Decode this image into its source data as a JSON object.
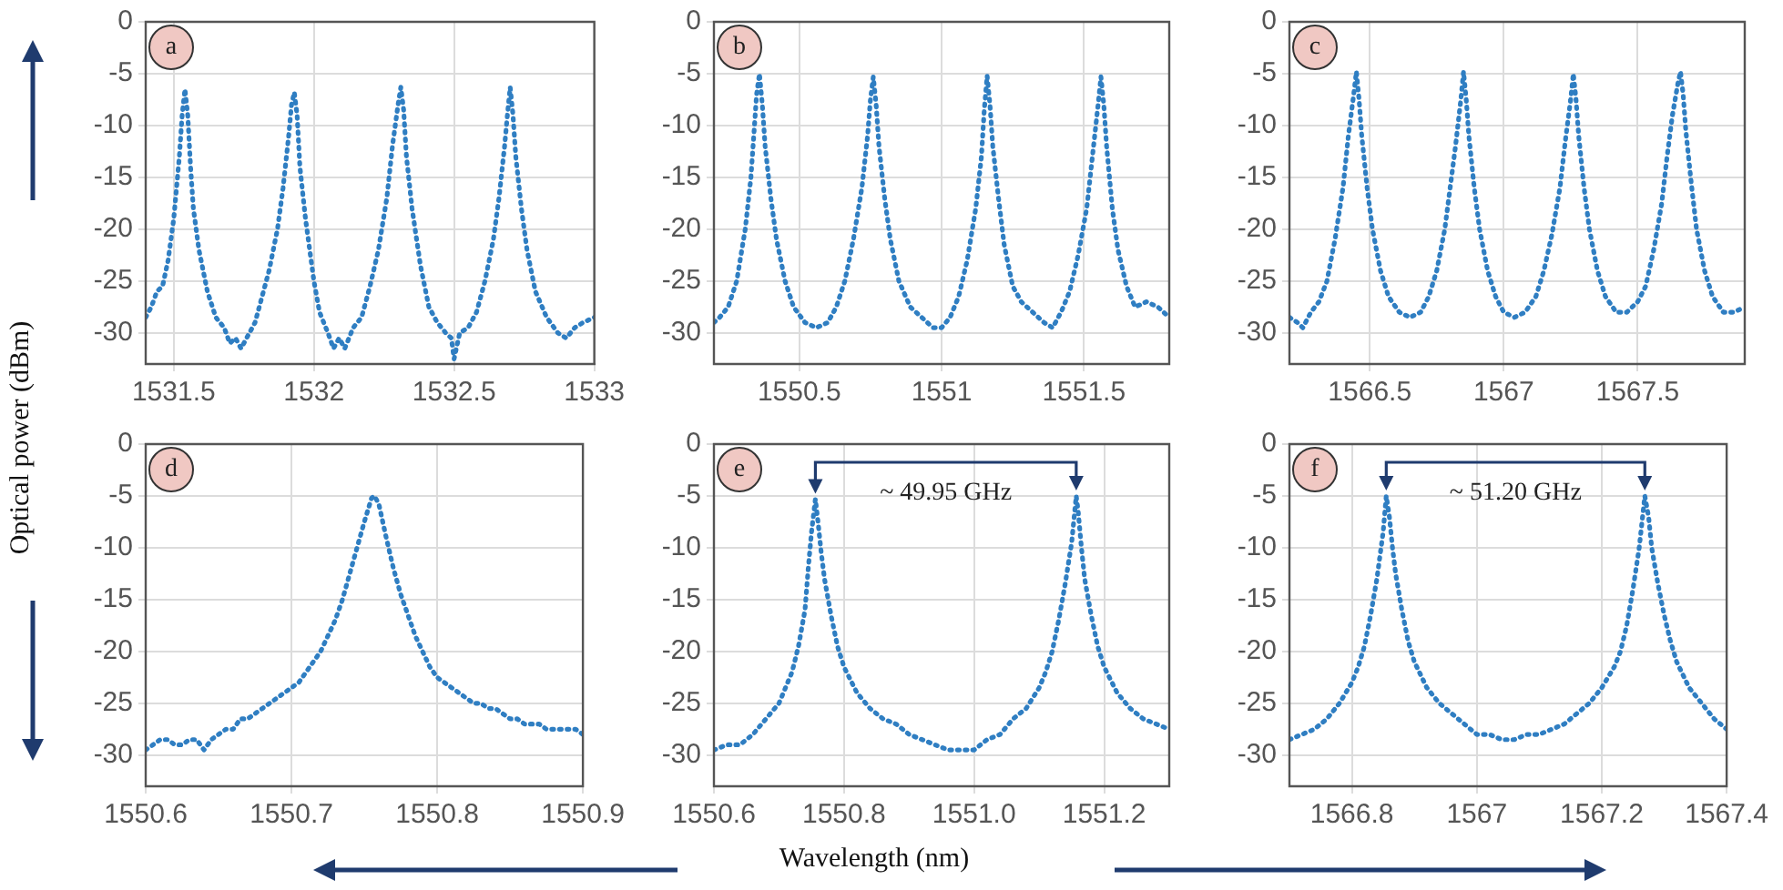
{
  "chart_data": [
    {
      "type": "line",
      "ylabel": "Optical power (dBm)",
      "annotations": [
        "a"
      ],
      "xlim": [
        1531.4,
        1533
      ],
      "xticks": [
        1531.5,
        1532,
        1532.5,
        1533
      ],
      "ylim": [
        -33,
        0
      ],
      "yticks": [
        0,
        -5,
        -10,
        -15,
        -20,
        -25,
        -30
      ],
      "grid": true,
      "legend": false,
      "marker": "none",
      "line_style": "dotted",
      "series": [
        {
          "color": "#2f7ec2",
          "x": [
            1531.4,
            1531.42,
            1531.44,
            1531.46,
            1531.48,
            1531.5,
            1531.51,
            1531.52,
            1531.53,
            1531.54,
            1531.55,
            1531.56,
            1531.57,
            1531.59,
            1531.62,
            1531.65,
            1531.68,
            1531.7,
            1531.72,
            1531.74,
            1531.76,
            1531.79,
            1531.81,
            1531.84,
            1531.87,
            1531.89,
            1531.91,
            1531.92,
            1531.93,
            1531.94,
            1531.95,
            1531.97,
            1532.0,
            1532.02,
            1532.05,
            1532.07,
            1532.09,
            1532.11,
            1532.14,
            1532.17,
            1532.2,
            1532.23,
            1532.26,
            1532.28,
            1532.3,
            1532.31,
            1532.32,
            1532.33,
            1532.35,
            1532.38,
            1532.41,
            1532.44,
            1532.47,
            1532.49,
            1532.5,
            1532.52,
            1532.55,
            1532.58,
            1532.61,
            1532.64,
            1532.66,
            1532.68,
            1532.69,
            1532.7,
            1532.71,
            1532.72,
            1532.74,
            1532.76,
            1532.79,
            1532.83,
            1532.87,
            1532.9,
            1532.93,
            1532.96,
            1533.0
          ],
          "values": [
            -28.5,
            -27.5,
            -26,
            -25.5,
            -23,
            -19,
            -16,
            -13,
            -9,
            -6.5,
            -9,
            -14,
            -18,
            -22,
            -26,
            -28.5,
            -29.5,
            -31,
            -30.5,
            -31.5,
            -30.5,
            -29,
            -27,
            -24,
            -20,
            -16,
            -11,
            -8,
            -6.8,
            -9,
            -14,
            -19,
            -25,
            -28,
            -30,
            -31.5,
            -30.5,
            -31.5,
            -29.5,
            -28.5,
            -25.5,
            -22,
            -17,
            -12,
            -8,
            -6.3,
            -8.5,
            -13,
            -18,
            -23.5,
            -27.5,
            -29,
            -30,
            -30.5,
            -32.5,
            -30,
            -29.5,
            -28,
            -25,
            -21,
            -17,
            -12,
            -9,
            -6.3,
            -9,
            -13,
            -18,
            -22,
            -26,
            -28.5,
            -30,
            -30.5,
            -29.5,
            -29,
            -28.5
          ]
        }
      ]
    },
    {
      "type": "line",
      "annotations": [
        "b"
      ],
      "xlim": [
        1550.2,
        1551.8
      ],
      "xticks": [
        1550.5,
        1551,
        1551.5
      ],
      "ylim": [
        -33,
        0
      ],
      "yticks": [
        0,
        -5,
        -10,
        -15,
        -20,
        -25,
        -30
      ],
      "grid": true,
      "legend": false,
      "marker": "none",
      "line_style": "dotted",
      "series": [
        {
          "color": "#2f7ec2",
          "x": [
            1550.2,
            1550.22,
            1550.25,
            1550.28,
            1550.31,
            1550.33,
            1550.34,
            1550.35,
            1550.36,
            1550.37,
            1550.38,
            1550.4,
            1550.42,
            1550.45,
            1550.48,
            1550.52,
            1550.56,
            1550.6,
            1550.63,
            1550.66,
            1550.69,
            1550.72,
            1550.74,
            1550.75,
            1550.76,
            1550.77,
            1550.78,
            1550.8,
            1550.82,
            1550.85,
            1550.89,
            1550.93,
            1550.97,
            1551.0,
            1551.03,
            1551.06,
            1551.09,
            1551.12,
            1551.14,
            1551.15,
            1551.16,
            1551.17,
            1551.18,
            1551.2,
            1551.22,
            1551.25,
            1551.28,
            1551.32,
            1551.36,
            1551.39,
            1551.42,
            1551.45,
            1551.48,
            1551.51,
            1551.53,
            1551.55,
            1551.56,
            1551.57,
            1551.58,
            1551.6,
            1551.62,
            1551.65,
            1551.68,
            1551.72,
            1551.76,
            1551.8
          ],
          "values": [
            -29,
            -28.5,
            -27.5,
            -25,
            -20,
            -15,
            -11,
            -7,
            -5,
            -8,
            -12,
            -17,
            -21,
            -25,
            -27.5,
            -29,
            -29.5,
            -29,
            -27.5,
            -25,
            -21,
            -16,
            -11,
            -7.5,
            -5.3,
            -8,
            -12,
            -17,
            -21,
            -25,
            -27.5,
            -28.5,
            -29.5,
            -29.5,
            -28.5,
            -26.5,
            -23,
            -18,
            -13,
            -8.5,
            -5.2,
            -8,
            -12,
            -17,
            -21.5,
            -25.5,
            -27,
            -28,
            -29,
            -29.5,
            -28,
            -26,
            -22.5,
            -18,
            -13,
            -8,
            -5.3,
            -8,
            -12,
            -18,
            -22,
            -25.5,
            -27.5,
            -27,
            -27.5,
            -28.5
          ]
        }
      ]
    },
    {
      "type": "line",
      "annotations": [
        "c"
      ],
      "xlim": [
        1566.2,
        1567.9
      ],
      "xticks": [
        1566.5,
        1567,
        1567.5
      ],
      "ylim": [
        -33,
        0
      ],
      "yticks": [
        0,
        -5,
        -10,
        -15,
        -20,
        -25,
        -30
      ],
      "grid": true,
      "legend": false,
      "marker": "none",
      "line_style": "dotted",
      "series": [
        {
          "color": "#2f7ec2",
          "x": [
            1566.2,
            1566.23,
            1566.25,
            1566.28,
            1566.31,
            1566.34,
            1566.37,
            1566.4,
            1566.42,
            1566.44,
            1566.45,
            1566.46,
            1566.47,
            1566.49,
            1566.51,
            1566.54,
            1566.57,
            1566.61,
            1566.65,
            1566.69,
            1566.72,
            1566.75,
            1566.78,
            1566.8,
            1566.82,
            1566.84,
            1566.85,
            1566.86,
            1566.87,
            1566.89,
            1566.91,
            1566.94,
            1566.97,
            1567.0,
            1567.04,
            1567.08,
            1567.12,
            1567.15,
            1567.18,
            1567.21,
            1567.23,
            1567.25,
            1567.26,
            1567.27,
            1567.28,
            1567.3,
            1567.32,
            1567.35,
            1567.38,
            1567.42,
            1567.46,
            1567.5,
            1567.53,
            1567.56,
            1567.59,
            1567.61,
            1567.63,
            1567.65,
            1567.66,
            1567.67,
            1567.68,
            1567.7,
            1567.72,
            1567.75,
            1567.78,
            1567.82,
            1567.86,
            1567.9
          ],
          "values": [
            -28.5,
            -29,
            -29.5,
            -28,
            -27,
            -25,
            -21,
            -16,
            -11,
            -7,
            -4.8,
            -7.5,
            -11,
            -16,
            -20,
            -24,
            -26.5,
            -28,
            -28.5,
            -28,
            -26.5,
            -24,
            -20,
            -16,
            -12,
            -7.5,
            -4.8,
            -7.5,
            -11,
            -16,
            -20,
            -24,
            -26.5,
            -28,
            -28.5,
            -28,
            -26.5,
            -24,
            -20.5,
            -16,
            -11.5,
            -7.5,
            -5,
            -7.5,
            -11,
            -16,
            -20,
            -24,
            -26.5,
            -28,
            -28,
            -27,
            -25.5,
            -22,
            -17.5,
            -13,
            -9,
            -6,
            -4.8,
            -7,
            -10.5,
            -15.5,
            -20,
            -24,
            -26.5,
            -28,
            -28,
            -27.5
          ]
        }
      ]
    },
    {
      "type": "line",
      "annotations": [
        "d"
      ],
      "xlim": [
        1550.6,
        1550.9
      ],
      "xticks": [
        1550.6,
        1550.7,
        1550.8,
        1550.9
      ],
      "ylim": [
        -33,
        0
      ],
      "yticks": [
        0,
        -5,
        -10,
        -15,
        -20,
        -25,
        -30
      ],
      "grid": true,
      "legend": false,
      "marker": "none",
      "line_style": "dotted",
      "series": [
        {
          "color": "#2f7ec2",
          "x": [
            1550.6,
            1550.605,
            1550.61,
            1550.615,
            1550.62,
            1550.625,
            1550.63,
            1550.635,
            1550.64,
            1550.645,
            1550.65,
            1550.655,
            1550.66,
            1550.665,
            1550.67,
            1550.675,
            1550.68,
            1550.685,
            1550.69,
            1550.695,
            1550.7,
            1550.705,
            1550.71,
            1550.715,
            1550.72,
            1550.725,
            1550.73,
            1550.735,
            1550.74,
            1550.745,
            1550.75,
            1550.755,
            1550.757,
            1550.76,
            1550.765,
            1550.77,
            1550.775,
            1550.78,
            1550.785,
            1550.79,
            1550.795,
            1550.8,
            1550.805,
            1550.81,
            1550.815,
            1550.82,
            1550.825,
            1550.83,
            1550.835,
            1550.84,
            1550.845,
            1550.85,
            1550.855,
            1550.86,
            1550.865,
            1550.87,
            1550.875,
            1550.88,
            1550.885,
            1550.89,
            1550.895,
            1550.9
          ],
          "values": [
            -29.5,
            -29,
            -28.5,
            -28.5,
            -29,
            -29,
            -28.5,
            -28.5,
            -29.5,
            -28.5,
            -28,
            -27.5,
            -27.5,
            -26.5,
            -26.5,
            -26,
            -25.5,
            -25,
            -24.5,
            -24,
            -23.5,
            -23,
            -22,
            -21,
            -20,
            -18.5,
            -17,
            -15,
            -12.5,
            -10,
            -7.5,
            -5.2,
            -5,
            -5.8,
            -9,
            -12,
            -14.5,
            -16.5,
            -18.5,
            -20,
            -21.5,
            -22.5,
            -23,
            -23.5,
            -24,
            -24.5,
            -25,
            -25,
            -25.5,
            -25.5,
            -26,
            -26.5,
            -26.5,
            -27,
            -27,
            -27,
            -27.5,
            -27.5,
            -27.5,
            -27.5,
            -27.5,
            -28
          ]
        }
      ]
    },
    {
      "type": "line",
      "xlabel": "Wavelength (nm)",
      "annotations": [
        "e",
        "~ 49.95 GHz"
      ],
      "xlim": [
        1550.6,
        1551.3
      ],
      "xticks": [
        1550.6,
        1550.8,
        {
          "value": 1551.0,
          "label": "1551.0"
        },
        1551.2
      ],
      "ylim": [
        -33,
        0
      ],
      "yticks": [
        0,
        -5,
        -10,
        -15,
        -20,
        -25,
        -30
      ],
      "grid": true,
      "legend": false,
      "marker": "none",
      "line_style": "dotted",
      "series": [
        {
          "color": "#2f7ec2",
          "x": [
            1550.6,
            1550.62,
            1550.64,
            1550.66,
            1550.68,
            1550.7,
            1550.71,
            1550.72,
            1550.73,
            1550.74,
            1550.745,
            1550.75,
            1550.756,
            1550.76,
            1550.765,
            1550.77,
            1550.78,
            1550.79,
            1550.8,
            1550.82,
            1550.84,
            1550.86,
            1550.88,
            1550.9,
            1550.92,
            1550.94,
            1550.96,
            1550.98,
            1551.0,
            1551.02,
            1551.04,
            1551.06,
            1551.08,
            1551.1,
            1551.11,
            1551.12,
            1551.13,
            1551.14,
            1551.15,
            1551.157,
            1551.16,
            1551.165,
            1551.17,
            1551.18,
            1551.19,
            1551.2,
            1551.22,
            1551.24,
            1551.26,
            1551.28,
            1551.3
          ],
          "values": [
            -29.5,
            -29,
            -29,
            -28,
            -26.5,
            -25,
            -23.5,
            -22,
            -19.5,
            -16,
            -12,
            -8.5,
            -5.3,
            -7.5,
            -10.5,
            -13,
            -16.5,
            -19.5,
            -21.5,
            -24,
            -25.5,
            -26.5,
            -27,
            -28,
            -28.5,
            -29,
            -29.5,
            -29.5,
            -29.5,
            -28.5,
            -28,
            -26.5,
            -25.5,
            -23.5,
            -22,
            -20,
            -17,
            -13.5,
            -9.5,
            -5,
            -6.5,
            -10,
            -13,
            -16.5,
            -19.5,
            -21.5,
            -24,
            -25.5,
            -26.5,
            -27,
            -27.5
          ]
        }
      ]
    },
    {
      "type": "line",
      "annotations": [
        "f",
        "~ 51.20 GHz"
      ],
      "xlim": [
        1566.7,
        1567.4
      ],
      "xticks": [
        1566.8,
        1567,
        1567.2,
        1567.4
      ],
      "ylim": [
        -33,
        0
      ],
      "yticks": [
        0,
        -5,
        -10,
        -15,
        -20,
        -25,
        -30
      ],
      "grid": true,
      "legend": false,
      "marker": "none",
      "line_style": "dotted",
      "series": [
        {
          "color": "#2f7ec2",
          "x": [
            1566.7,
            1566.72,
            1566.74,
            1566.76,
            1566.78,
            1566.8,
            1566.81,
            1566.82,
            1566.83,
            1566.84,
            1566.85,
            1566.855,
            1566.86,
            1566.865,
            1566.87,
            1566.88,
            1566.89,
            1566.9,
            1566.92,
            1566.94,
            1566.96,
            1566.98,
            1567.0,
            1567.02,
            1567.04,
            1567.06,
            1567.08,
            1567.1,
            1567.12,
            1567.14,
            1567.16,
            1567.18,
            1567.2,
            1567.22,
            1567.23,
            1567.24,
            1567.25,
            1567.26,
            1567.269,
            1567.275,
            1567.28,
            1567.29,
            1567.3,
            1567.31,
            1567.32,
            1567.34,
            1567.36,
            1567.38,
            1567.4
          ],
          "values": [
            -28.5,
            -28,
            -27.5,
            -26.5,
            -25,
            -23,
            -21.5,
            -19.5,
            -16.5,
            -13,
            -8.5,
            -5,
            -7,
            -10,
            -12.5,
            -16,
            -19,
            -21,
            -23.5,
            -25,
            -26,
            -27,
            -28,
            -28,
            -28.5,
            -28.5,
            -28,
            -28,
            -27.5,
            -27,
            -26,
            -25,
            -23.5,
            -21.5,
            -20,
            -17.5,
            -14,
            -10,
            -5,
            -7,
            -10,
            -13.5,
            -16.5,
            -19,
            -21,
            -23.5,
            -25,
            -26.5,
            -27.5
          ]
        }
      ]
    }
  ]
}
